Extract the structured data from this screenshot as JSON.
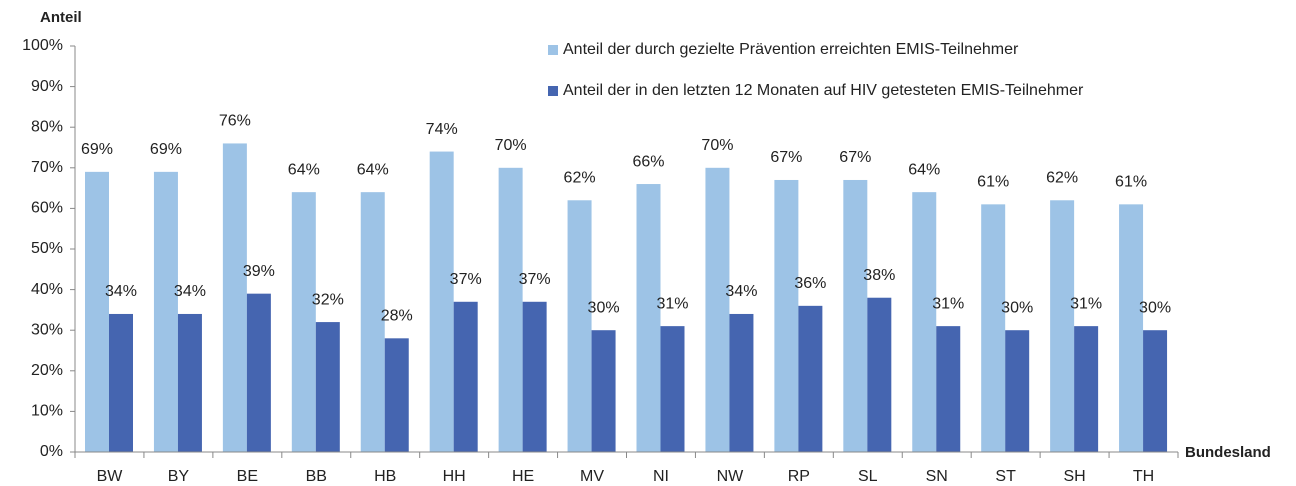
{
  "chart_data": {
    "type": "bar",
    "y_label": "Anteil",
    "x_label": "Bundesland",
    "categories": [
      "BW",
      "BY",
      "BE",
      "BB",
      "HB",
      "HH",
      "HE",
      "MV",
      "NI",
      "NW",
      "RP",
      "SL",
      "SN",
      "ST",
      "SH",
      "TH"
    ],
    "series": [
      {
        "name": "Anteil der durch gezielte Prävention erreichten EMIS-Teilnehmer",
        "color": "#9dc3e6",
        "values": [
          69,
          69,
          76,
          64,
          64,
          74,
          70,
          62,
          66,
          70,
          67,
          67,
          64,
          61,
          62,
          61
        ],
        "value_labels": [
          "69%",
          "69%",
          "76%",
          "64%",
          "64%",
          "74%",
          "70%",
          "62%",
          "66%",
          "70%",
          "67%",
          "67%",
          "64%",
          "61%",
          "62%",
          "61%"
        ]
      },
      {
        "name": "Anteil der in den letzten 12 Monaten auf HIV getesteten EMIS-Teilnehmer",
        "color": "#4565b0",
        "values": [
          34,
          34,
          39,
          32,
          28,
          37,
          37,
          30,
          31,
          34,
          36,
          38,
          31,
          30,
          31,
          30
        ],
        "value_labels": [
          "34%",
          "34%",
          "39%",
          "32%",
          "28%",
          "37%",
          "37%",
          "30%",
          "31%",
          "34%",
          "36%",
          "38%",
          "31%",
          "30%",
          "31%",
          "30%"
        ]
      }
    ],
    "ylim": [
      0,
      100
    ],
    "yticks": [
      {
        "value": 0,
        "label": "0%"
      },
      {
        "value": 10,
        "label": "10%"
      },
      {
        "value": 20,
        "label": "20%"
      },
      {
        "value": 30,
        "label": "30%"
      },
      {
        "value": 40,
        "label": "40%"
      },
      {
        "value": 50,
        "label": "50%"
      },
      {
        "value": 60,
        "label": "60%"
      },
      {
        "value": 70,
        "label": "70%"
      },
      {
        "value": 80,
        "label": "80%"
      },
      {
        "value": 90,
        "label": "90%"
      },
      {
        "value": 100,
        "label": "100%"
      }
    ],
    "grid": false,
    "legend": "top-right"
  }
}
